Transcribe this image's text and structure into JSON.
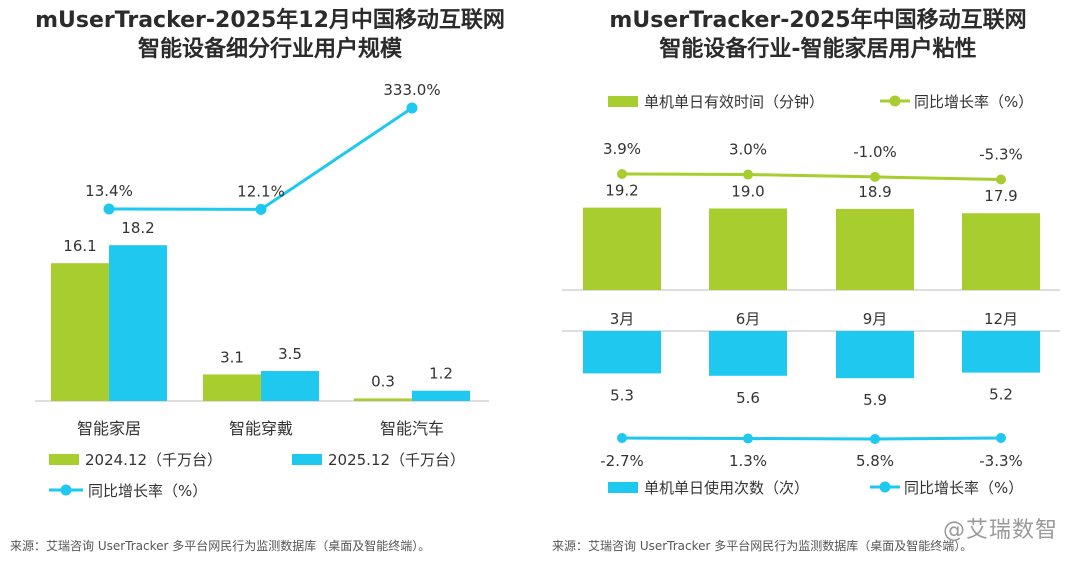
{
  "colors": {
    "green": "#a8cd2f",
    "cyan": "#1ec8ef",
    "rate_right_top": "#a8cd2f",
    "rate_cyan": "#1ec8ef"
  },
  "watermark": "@艾瑞数智",
  "chart_data": [
    {
      "type": "bar",
      "title_lines": [
        "mUserTracker-2025年12月中国移动互联网",
        "智能设备细分行业用户规模"
      ],
      "categories": [
        "智能家居",
        "智能穿戴",
        "智能汽车"
      ],
      "series": [
        {
          "name": "2024.12（千万台）",
          "type": "bar",
          "values": [
            16.1,
            3.1,
            0.3
          ]
        },
        {
          "name": "2025.12（千万台）",
          "type": "bar",
          "values": [
            18.2,
            3.5,
            1.2
          ]
        },
        {
          "name": "同比增长率（%）",
          "type": "line",
          "values": [
            13.4,
            12.1,
            333.0
          ],
          "labels": [
            "13.4%",
            "12.1%",
            "333.0%"
          ]
        }
      ],
      "source": "来源：艾瑞咨询 UserTracker 多平台网民行为监测数据库（桌面及智能终端）。"
    },
    {
      "type": "bar",
      "title_lines": [
        "mUserTracker-2025年中国移动互联网",
        "智能设备行业-智能家居用户粘性"
      ],
      "categories": [
        "3月",
        "6月",
        "9月",
        "12月"
      ],
      "top": {
        "series": [
          {
            "name": "单机单日有效时间（分钟）",
            "type": "bar",
            "values": [
              19.2,
              19.0,
              18.9,
              17.9
            ]
          },
          {
            "name": "同比增长率（%）",
            "type": "line",
            "values": [
              3.9,
              3.0,
              -1.0,
              -5.3
            ],
            "labels": [
              "3.9%",
              "3.0%",
              "-1.0%",
              "-5.3%"
            ]
          }
        ]
      },
      "bottom": {
        "series": [
          {
            "name": "单机单日使用次数（次）",
            "type": "bar",
            "values": [
              5.3,
              5.6,
              5.9,
              5.2
            ]
          },
          {
            "name": "同比增长率（%）",
            "type": "line",
            "values": [
              -2.7,
              1.3,
              5.8,
              -3.3
            ],
            "labels": [
              "-2.7%",
              "1.3%",
              "5.8%",
              "-3.3%"
            ]
          }
        ]
      },
      "source": "来源：艾瑞咨询 UserTracker 多平台网民行为监测数据库（桌面及智能终端）。"
    }
  ]
}
